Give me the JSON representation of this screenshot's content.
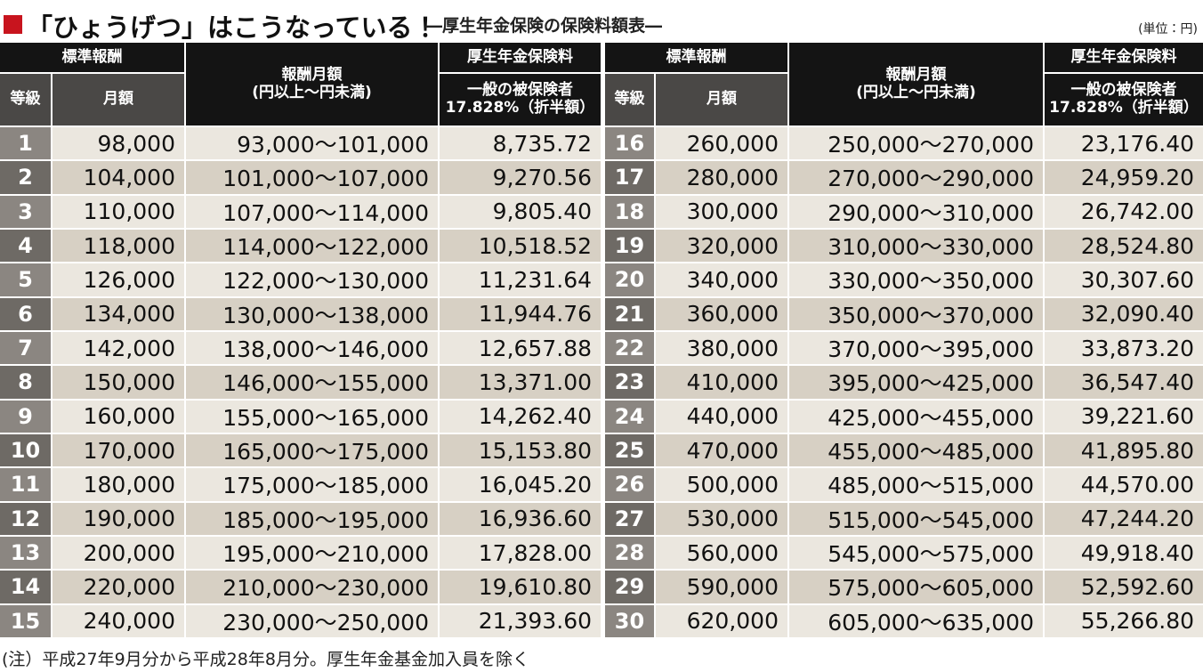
{
  "title": "「ひょうげつ」はこうなっている！",
  "subtitle": "―厚生年金保険の保険料額表―",
  "unit": "(単位：円)",
  "header": {
    "group": "標準報酬",
    "range_title": "報酬月額",
    "range_sub": "(円以上～円未満)",
    "premium_title": "厚生年金保険料",
    "grade": "等級",
    "monthly": "月額",
    "premium_sub1": "一般の被保険者",
    "premium_sub2": "17.828%（折半額）"
  },
  "tables": [
    {
      "rows": [
        [
          "1",
          "98,000",
          "93,000～101,000",
          "8,735.72"
        ],
        [
          "2",
          "104,000",
          "101,000～107,000",
          "9,270.56"
        ],
        [
          "3",
          "110,000",
          "107,000～114,000",
          "9,805.40"
        ],
        [
          "4",
          "118,000",
          "114,000～122,000",
          "10,518.52"
        ],
        [
          "5",
          "126,000",
          "122,000～130,000",
          "11,231.64"
        ],
        [
          "6",
          "134,000",
          "130,000～138,000",
          "11,944.76"
        ],
        [
          "7",
          "142,000",
          "138,000～146,000",
          "12,657.88"
        ],
        [
          "8",
          "150,000",
          "146,000～155,000",
          "13,371.00"
        ],
        [
          "9",
          "160,000",
          "155,000～165,000",
          "14,262.40"
        ],
        [
          "10",
          "170,000",
          "165,000～175,000",
          "15,153.80"
        ],
        [
          "11",
          "180,000",
          "175,000～185,000",
          "16,045.20"
        ],
        [
          "12",
          "190,000",
          "185,000～195,000",
          "16,936.60"
        ],
        [
          "13",
          "200,000",
          "195,000～210,000",
          "17,828.00"
        ],
        [
          "14",
          "220,000",
          "210,000～230,000",
          "19,610.80"
        ],
        [
          "15",
          "240,000",
          "230,000～250,000",
          "21,393.60"
        ]
      ]
    },
    {
      "rows": [
        [
          "16",
          "260,000",
          "250,000～270,000",
          "23,176.40"
        ],
        [
          "17",
          "280,000",
          "270,000～290,000",
          "24,959.20"
        ],
        [
          "18",
          "300,000",
          "290,000～310,000",
          "26,742.00"
        ],
        [
          "19",
          "320,000",
          "310,000～330,000",
          "28,524.80"
        ],
        [
          "20",
          "340,000",
          "330,000～350,000",
          "30,307.60"
        ],
        [
          "21",
          "360,000",
          "350,000～370,000",
          "32,090.40"
        ],
        [
          "22",
          "380,000",
          "370,000～395,000",
          "33,873.20"
        ],
        [
          "23",
          "410,000",
          "395,000～425,000",
          "36,547.40"
        ],
        [
          "24",
          "440,000",
          "425,000～455,000",
          "39,221.60"
        ],
        [
          "25",
          "470,000",
          "455,000～485,000",
          "41,895.80"
        ],
        [
          "26",
          "500,000",
          "485,000～515,000",
          "44,570.00"
        ],
        [
          "27",
          "530,000",
          "515,000～545,000",
          "47,244.20"
        ],
        [
          "28",
          "560,000",
          "545,000～575,000",
          "49,918.40"
        ],
        [
          "29",
          "590,000",
          "575,000～605,000",
          "52,592.60"
        ],
        [
          "30",
          "620,000",
          "605,000～635,000",
          "55,266.80"
        ]
      ]
    }
  ],
  "note": "(注）平成27年9月分から平成28年8月分。厚生年金基金加入員を除く"
}
